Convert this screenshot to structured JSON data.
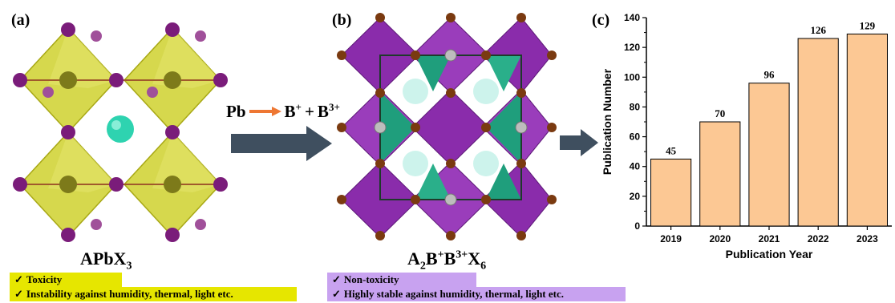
{
  "panels": {
    "a": {
      "label": "(a)",
      "formula": {
        "base": "APbX",
        "sub": "3"
      },
      "notes": [
        "Toxicity",
        "Instability against humidity, thermal, light etc."
      ]
    },
    "b": {
      "label": "(b)",
      "formula": {
        "p1": "A",
        "s1": "2",
        "p2": "B",
        "u1": "+",
        "p3": "B",
        "u2": "3+",
        "p4": "X",
        "s2": "6"
      },
      "notes": [
        "Non-toxicity",
        "Highly stable against humidity, thermal, light etc."
      ]
    },
    "c": {
      "label": "(c)"
    }
  },
  "equation": {
    "left": "Pb",
    "right_a": "B",
    "right_a_sup": "+",
    "plus": "+",
    "right_b": "B",
    "right_b_sup": "3+"
  },
  "check_mark": "✓",
  "colors": {
    "yellow_box": "#e6e600",
    "purple_box": "#c8a2f0",
    "bar_fill": "#fcc894",
    "arrow": "#3f4f5f",
    "equation_arrow": "#ee7733",
    "octahedron_yellow": "#cfd12e",
    "octahedron_purple": "#8a2cab",
    "octahedron_green": "#1f9e7c",
    "atom_purple": "#7a1c7a",
    "atom_brown": "#7a3a10",
    "atom_cyan": "#2ed3b0"
  },
  "chart_data": {
    "type": "bar",
    "categories": [
      "2019",
      "2020",
      "2021",
      "2022",
      "2023"
    ],
    "values": [
      45,
      70,
      96,
      126,
      129
    ],
    "xlabel": "Publication Year",
    "ylabel": "Publication Number",
    "ylim": [
      0,
      140
    ],
    "yticks": [
      0,
      20,
      40,
      60,
      80,
      100,
      120,
      140
    ],
    "data_labels": [
      "45",
      "70",
      "96",
      "126",
      "129"
    ],
    "grid": false
  }
}
